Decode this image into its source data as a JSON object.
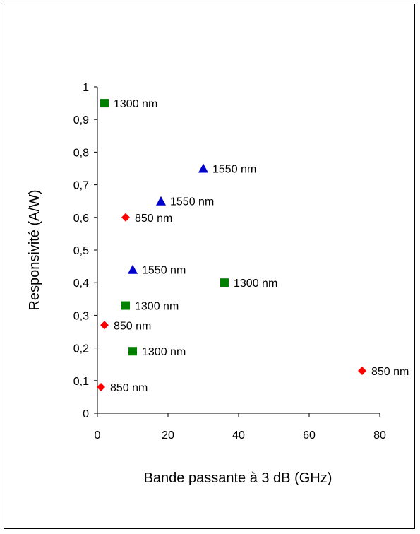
{
  "chart_data": {
    "type": "scatter",
    "xlabel": "Bande passante à 3 dB (GHz)",
    "ylabel": "Responsivité (A/W)",
    "xlim": [
      0,
      80
    ],
    "ylim": [
      0,
      1
    ],
    "x_ticks": [
      "0",
      "20",
      "40",
      "60",
      "80"
    ],
    "y_ticks": [
      "0",
      "0,1",
      "0,2",
      "0,3",
      "0,4",
      "0,5",
      "0,6",
      "0,7",
      "0,8",
      "0,9",
      "1"
    ],
    "grid": false,
    "legend": "none",
    "series": [
      {
        "marker": "square",
        "color": "#008000",
        "points": [
          {
            "x": 2,
            "y": 0.95,
            "label": "1300 nm"
          },
          {
            "x": 36,
            "y": 0.4,
            "label": "1300 nm"
          },
          {
            "x": 8,
            "y": 0.33,
            "label": "1300 nm"
          },
          {
            "x": 10,
            "y": 0.19,
            "label": "1300 nm"
          }
        ]
      },
      {
        "marker": "triangle",
        "color": "#0000CC",
        "points": [
          {
            "x": 30,
            "y": 0.75,
            "label": "1550 nm"
          },
          {
            "x": 18,
            "y": 0.65,
            "label": "1550 nm"
          },
          {
            "x": 10,
            "y": 0.44,
            "label": "1550 nm"
          }
        ]
      },
      {
        "marker": "diamond",
        "color": "#FF0000",
        "points": [
          {
            "x": 8,
            "y": 0.6,
            "label": "850 nm"
          },
          {
            "x": 2,
            "y": 0.27,
            "label": "850 nm"
          },
          {
            "x": 1,
            "y": 0.08,
            "label": "850 nm"
          },
          {
            "x": 75,
            "y": 0.13,
            "label": "850 nm"
          }
        ]
      }
    ]
  }
}
